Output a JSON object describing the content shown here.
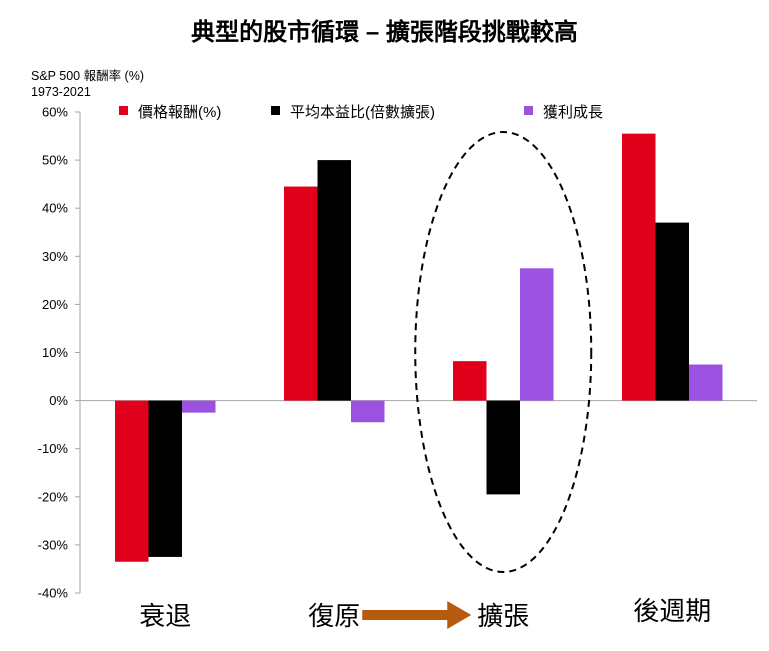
{
  "chart_data": {
    "type": "bar",
    "title": "典型的股市循環 – 擴張階段挑戰較高",
    "ylabel_lines": [
      "S&P 500 報酬率 (%)",
      "1973-2021"
    ],
    "ylim": [
      -40,
      60
    ],
    "yticks": [
      60,
      50,
      40,
      30,
      20,
      10,
      0,
      -10,
      -20,
      -30,
      -40
    ],
    "ytick_labels": [
      "60%",
      "50%",
      "40%",
      "30%",
      "20%",
      "10%",
      "0%",
      "-10%",
      "-20%",
      "-30%",
      "-40%"
    ],
    "categories": [
      "衰退",
      "復原",
      "擴張",
      "後週期"
    ],
    "series": [
      {
        "name": "價格報酬(%)",
        "color": "#e0001b",
        "values": [
          -33.5,
          44.5,
          8.2,
          55.5
        ]
      },
      {
        "name": "平均本益比(倍數擴張)",
        "color": "#000000",
        "values": [
          -32.5,
          50.0,
          -19.5,
          37.0
        ]
      },
      {
        "name": "獲利成長",
        "color": "#9b52e0",
        "values": [
          -2.5,
          -4.5,
          27.5,
          7.5
        ]
      }
    ],
    "annotation": {
      "type": "arrow",
      "from": "復原",
      "to": "擴張",
      "color": "#b55a0f"
    },
    "highlight": {
      "type": "dashed-ellipse",
      "category": "擴張"
    }
  }
}
